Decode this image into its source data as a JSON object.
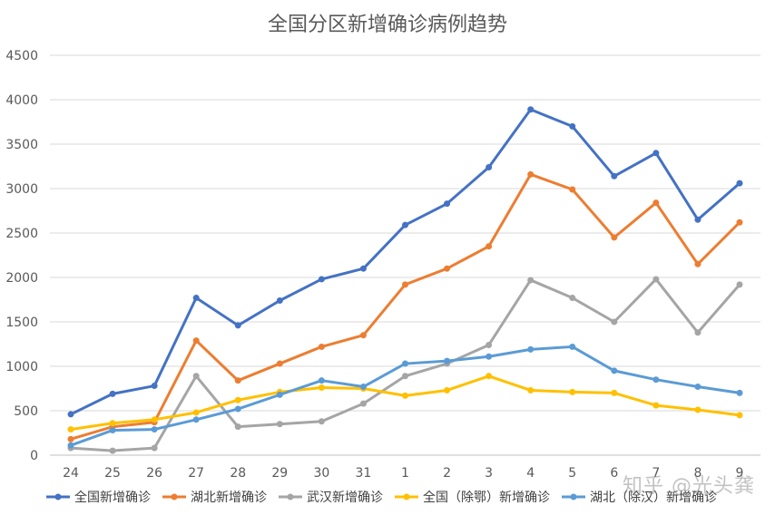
{
  "chart_data": {
    "type": "line",
    "title": "全国分区新增确诊病例趋势",
    "categories": [
      "24",
      "25",
      "26",
      "27",
      "28",
      "29",
      "30",
      "31",
      "1",
      "2",
      "3",
      "4",
      "5",
      "6",
      "7",
      "8",
      "9"
    ],
    "ylim": [
      0,
      4500
    ],
    "yticks": [
      0,
      500,
      1000,
      1500,
      2000,
      2500,
      3000,
      3500,
      4000,
      4500
    ],
    "grid": true,
    "legend_position": "bottom",
    "series": [
      {
        "name": "全国新增确诊",
        "color": "#4472C4",
        "values": [
          460,
          690,
          780,
          1770,
          1460,
          1740,
          1980,
          2100,
          2590,
          2830,
          3240,
          3890,
          3700,
          3140,
          3400,
          2650,
          3060
        ]
      },
      {
        "name": "湖北新增确诊",
        "color": "#ED7D31",
        "values": [
          180,
          320,
          370,
          1290,
          840,
          1030,
          1220,
          1350,
          1920,
          2100,
          2350,
          3160,
          2990,
          2450,
          2840,
          2150,
          2620
        ]
      },
      {
        "name": "武汉新增确诊",
        "color": "#A5A5A5",
        "values": [
          80,
          50,
          80,
          890,
          320,
          350,
          380,
          580,
          890,
          1030,
          1240,
          1970,
          1770,
          1500,
          1980,
          1380,
          1920
        ]
      },
      {
        "name": "全国（除鄂）新增确诊",
        "color": "#FFC000",
        "values": [
          290,
          360,
          400,
          480,
          620,
          710,
          760,
          750,
          670,
          730,
          890,
          730,
          710,
          700,
          560,
          510,
          450
        ]
      },
      {
        "name": "湖北（除汉）新增确诊",
        "color": "#5B9BD5",
        "values": [
          110,
          280,
          290,
          400,
          520,
          680,
          840,
          770,
          1030,
          1060,
          1110,
          1190,
          1220,
          950,
          850,
          770,
          700
        ]
      }
    ]
  },
  "watermark": "知乎 @光头龚"
}
